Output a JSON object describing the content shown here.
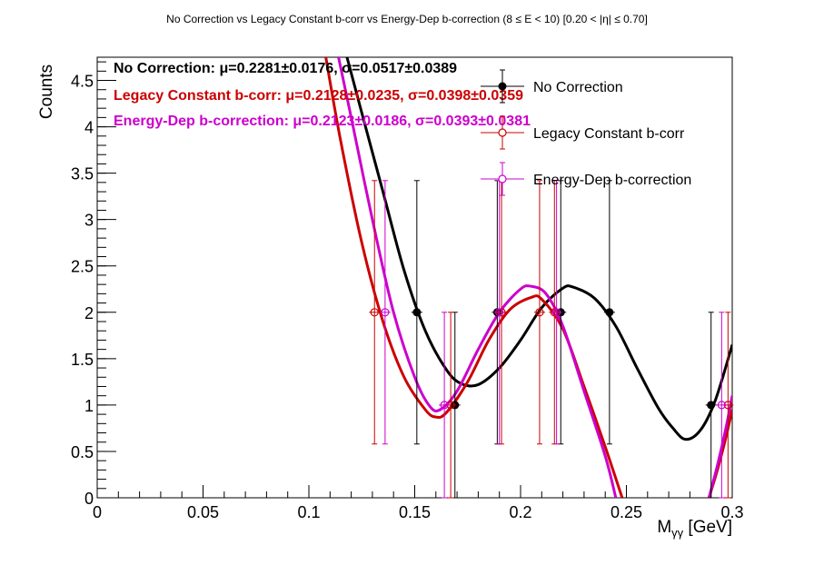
{
  "chart_data": {
    "type": "scatter",
    "title": "No Correction vs Legacy Constant b-corr vs Energy-Dep b-correction   (8 ≤ E < 10)   [0.20 < |η| ≤ 0.70]",
    "xlabel": "M_γγ [GeV]",
    "ylabel": "Counts",
    "xlim": [
      0,
      0.3
    ],
    "ylim": [
      0,
      4.75
    ],
    "x_ticks": [
      "0",
      "0.05",
      "0.1",
      "0.15",
      "0.2",
      "0.25",
      "0.3"
    ],
    "y_ticks": [
      "0",
      "0.5",
      "1",
      "1.5",
      "2",
      "2.5",
      "3",
      "3.5",
      "4",
      "4.5"
    ],
    "legend_placement": "top-right",
    "series": [
      {
        "name": "No Correction",
        "color": "#000000",
        "marker": "filled-circle",
        "points": [
          {
            "x": 0.151,
            "y": 2,
            "err": 1.42
          },
          {
            "x": 0.169,
            "y": 1,
            "err": 1.0
          },
          {
            "x": 0.189,
            "y": 2,
            "err": 1.42
          },
          {
            "x": 0.219,
            "y": 2,
            "err": 1.42
          },
          {
            "x": 0.242,
            "y": 2,
            "err": 1.42
          },
          {
            "x": 0.29,
            "y": 1,
            "err": 1.0
          }
        ],
        "stat_label": "No Correction:",
        "stat_text": "μ=0.2281±0.0176, σ=0.0517±0.0389",
        "fit_curve": [
          [
            0.118,
            4.75
          ],
          [
            0.125,
            4.15
          ],
          [
            0.135,
            3.3
          ],
          [
            0.145,
            2.45
          ],
          [
            0.155,
            1.8
          ],
          [
            0.165,
            1.38
          ],
          [
            0.172,
            1.23
          ],
          [
            0.18,
            1.22
          ],
          [
            0.19,
            1.4
          ],
          [
            0.2,
            1.7
          ],
          [
            0.21,
            2.05
          ],
          [
            0.22,
            2.26
          ],
          [
            0.225,
            2.27
          ],
          [
            0.235,
            2.15
          ],
          [
            0.245,
            1.85
          ],
          [
            0.255,
            1.4
          ],
          [
            0.265,
            0.97
          ],
          [
            0.272,
            0.75
          ],
          [
            0.278,
            0.63
          ],
          [
            0.285,
            0.73
          ],
          [
            0.292,
            1.05
          ],
          [
            0.3,
            1.65
          ]
        ]
      },
      {
        "name": "Legacy Constant b-corr",
        "color": "#cc0000",
        "marker": "open-circle",
        "points": [
          {
            "x": 0.131,
            "y": 2,
            "err": 1.42
          },
          {
            "x": 0.167,
            "y": 1,
            "err": 1.0
          },
          {
            "x": 0.191,
            "y": 2,
            "err": 1.42
          },
          {
            "x": 0.209,
            "y": 2,
            "err": 1.42
          },
          {
            "x": 0.216,
            "y": 2,
            "err": 1.42
          },
          {
            "x": 0.298,
            "y": 1,
            "err": 1.0
          }
        ],
        "stat_label": "Legacy Constant b-corr:",
        "stat_text": "μ=0.2128±0.0235, σ=0.0398±0.0359",
        "fit_curve": [
          [
            0.108,
            4.75
          ],
          [
            0.115,
            3.85
          ],
          [
            0.125,
            2.75
          ],
          [
            0.135,
            1.9
          ],
          [
            0.145,
            1.3
          ],
          [
            0.155,
            0.95
          ],
          [
            0.16,
            0.87
          ],
          [
            0.165,
            0.92
          ],
          [
            0.175,
            1.25
          ],
          [
            0.185,
            1.7
          ],
          [
            0.195,
            2.03
          ],
          [
            0.205,
            2.16
          ],
          [
            0.21,
            2.14
          ],
          [
            0.22,
            1.82
          ],
          [
            0.23,
            1.2
          ],
          [
            0.24,
            0.55
          ],
          [
            0.248,
            0.0
          ]
        ]
      },
      {
        "name": "Energy-Dep b-correction",
        "color": "#cc00cc",
        "marker": "open-circle",
        "points": [
          {
            "x": 0.136,
            "y": 2,
            "err": 1.42
          },
          {
            "x": 0.164,
            "y": 1,
            "err": 1.0
          },
          {
            "x": 0.19,
            "y": 2,
            "err": 1.42
          },
          {
            "x": 0.217,
            "y": 2,
            "err": 1.42
          },
          {
            "x": 0.295,
            "y": 1,
            "err": 1.0
          }
        ],
        "stat_label": "Energy-Dep b-correction:",
        "stat_text": "μ=0.2123±0.0186, σ=0.0393±0.0381",
        "fit_curve": [
          [
            0.114,
            4.75
          ],
          [
            0.12,
            4.1
          ],
          [
            0.13,
            3.0
          ],
          [
            0.14,
            2.0
          ],
          [
            0.15,
            1.3
          ],
          [
            0.157,
            0.99
          ],
          [
            0.162,
            0.95
          ],
          [
            0.17,
            1.15
          ],
          [
            0.18,
            1.6
          ],
          [
            0.19,
            2.0
          ],
          [
            0.2,
            2.25
          ],
          [
            0.205,
            2.28
          ],
          [
            0.212,
            2.2
          ],
          [
            0.22,
            1.85
          ],
          [
            0.23,
            1.15
          ],
          [
            0.24,
            0.45
          ],
          [
            0.245,
            0.0
          ]
        ]
      }
    ],
    "fit_tails": [
      {
        "series": 1,
        "points": [
          [
            0.289,
            0.0
          ],
          [
            0.293,
            0.3
          ],
          [
            0.297,
            0.65
          ],
          [
            0.3,
            0.95
          ]
        ]
      },
      {
        "series": 2,
        "points": [
          [
            0.289,
            0.0
          ],
          [
            0.293,
            0.35
          ],
          [
            0.297,
            0.75
          ],
          [
            0.3,
            1.1
          ]
        ]
      }
    ]
  }
}
